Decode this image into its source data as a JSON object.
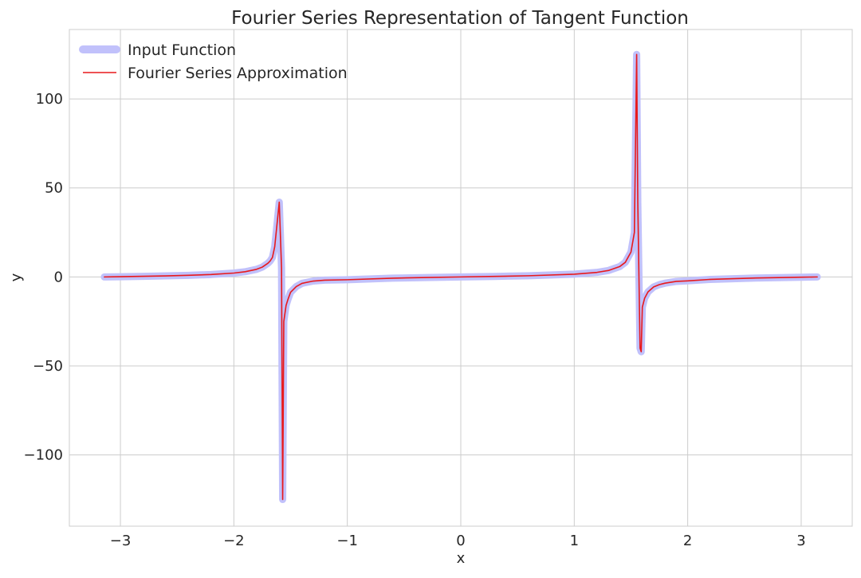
{
  "chart_data": {
    "type": "line",
    "title": "Fourier Series Representation of Tangent Function",
    "xlabel": "x",
    "ylabel": "y",
    "xlim": [
      -3.45,
      3.45
    ],
    "ylim": [
      -140,
      139
    ],
    "x_ticks": [
      -3,
      -2,
      -1,
      0,
      1,
      2,
      3
    ],
    "y_ticks": [
      -100,
      -50,
      0,
      50,
      100
    ],
    "x_tick_labels": [
      "−3",
      "−2",
      "−1",
      "0",
      "1",
      "2",
      "3"
    ],
    "y_tick_labels": [
      "−100",
      "−50",
      "0",
      "50",
      "100"
    ],
    "grid": true,
    "legend_position": "top-left",
    "series": [
      {
        "name": "Input Function",
        "color": "#c1c1fb",
        "x": [
          -3.1416,
          -3.0,
          -2.8,
          -2.6,
          -2.4,
          -2.2,
          -2.0,
          -1.9,
          -1.8,
          -1.75,
          -1.7,
          -1.68,
          -1.66,
          -1.64,
          -1.6,
          -1.58,
          -1.57,
          -1.56,
          -1.54,
          -1.52,
          -1.5,
          -1.45,
          -1.4,
          -1.3,
          -1.2,
          -1.0,
          -0.6,
          -0.3,
          0.0,
          0.3,
          0.6,
          1.0,
          1.2,
          1.3,
          1.4,
          1.45,
          1.5,
          1.53,
          1.55,
          1.56,
          1.58,
          1.59,
          1.6,
          1.62,
          1.65,
          1.7,
          1.75,
          1.8,
          1.9,
          2.0,
          2.2,
          2.6,
          3.0,
          3.1416
        ],
        "y": [
          0.0,
          0.14,
          0.36,
          0.6,
          0.92,
          1.37,
          2.19,
          2.93,
          4.29,
          5.52,
          7.7,
          9.0,
          11.0,
          17.0,
          42.0,
          5.0,
          -125.0,
          -25.0,
          -16.0,
          -12.0,
          -8.6,
          -5.4,
          -3.6,
          -2.3,
          -1.8,
          -1.56,
          -0.68,
          -0.31,
          0.0,
          0.31,
          0.68,
          1.56,
          2.57,
          3.6,
          5.8,
          8.2,
          14.0,
          25.0,
          125.0,
          42.0,
          -40.0,
          -42.0,
          -17.0,
          -12.0,
          -8.4,
          -5.6,
          -4.3,
          -3.5,
          -2.5,
          -2.19,
          -1.37,
          -0.6,
          -0.14,
          0.0
        ]
      },
      {
        "name": "Fourier Series Approximation",
        "color": "#e8191c",
        "x": [
          -3.1416,
          -3.0,
          -2.8,
          -2.6,
          -2.4,
          -2.2,
          -2.0,
          -1.9,
          -1.8,
          -1.75,
          -1.7,
          -1.68,
          -1.66,
          -1.64,
          -1.6,
          -1.58,
          -1.57,
          -1.56,
          -1.54,
          -1.52,
          -1.5,
          -1.45,
          -1.4,
          -1.3,
          -1.2,
          -1.0,
          -0.6,
          -0.3,
          0.0,
          0.3,
          0.6,
          1.0,
          1.2,
          1.3,
          1.4,
          1.45,
          1.5,
          1.53,
          1.55,
          1.56,
          1.58,
          1.59,
          1.6,
          1.62,
          1.65,
          1.7,
          1.75,
          1.8,
          1.9,
          2.0,
          2.2,
          2.6,
          3.0,
          3.1416
        ],
        "y": [
          0.0,
          0.14,
          0.36,
          0.6,
          0.92,
          1.37,
          2.19,
          2.93,
          4.29,
          5.52,
          7.7,
          9.0,
          11.0,
          17.0,
          42.0,
          5.0,
          -125.0,
          -25.0,
          -16.0,
          -12.0,
          -8.6,
          -5.4,
          -3.6,
          -2.3,
          -1.8,
          -1.56,
          -0.68,
          -0.31,
          0.0,
          0.31,
          0.68,
          1.56,
          2.57,
          3.6,
          5.8,
          8.2,
          14.0,
          25.0,
          125.0,
          42.0,
          -40.0,
          -42.0,
          -17.0,
          -12.0,
          -8.4,
          -5.6,
          -4.3,
          -3.5,
          -2.5,
          -2.19,
          -1.37,
          -0.6,
          -0.14,
          0.0
        ]
      }
    ]
  }
}
